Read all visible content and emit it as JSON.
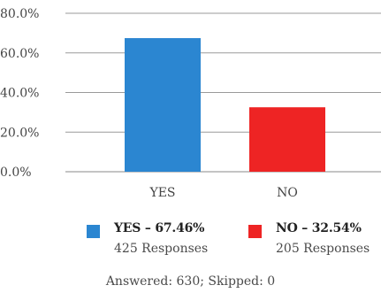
{
  "chart_data": {
    "type": "bar",
    "categories": [
      "YES",
      "NO"
    ],
    "values": [
      67.46,
      32.54
    ],
    "colors": [
      "#2b86d1",
      "#ee2424"
    ],
    "ylim": [
      0,
      80
    ],
    "yticks": [
      0,
      20,
      40,
      60,
      80
    ],
    "ytick_labels": [
      "0.0%",
      "20.0%",
      "40.0%",
      "60.0%",
      "80.0%"
    ],
    "grid": true,
    "legend": [
      {
        "label": "YES – 67.46%",
        "sub": "425 Responses",
        "color": "#2b86d1"
      },
      {
        "label": "NO – 32.54%",
        "sub": "205 Responses",
        "color": "#ee2424"
      }
    ]
  },
  "footer": "Answered: 630;  Skipped: 0"
}
